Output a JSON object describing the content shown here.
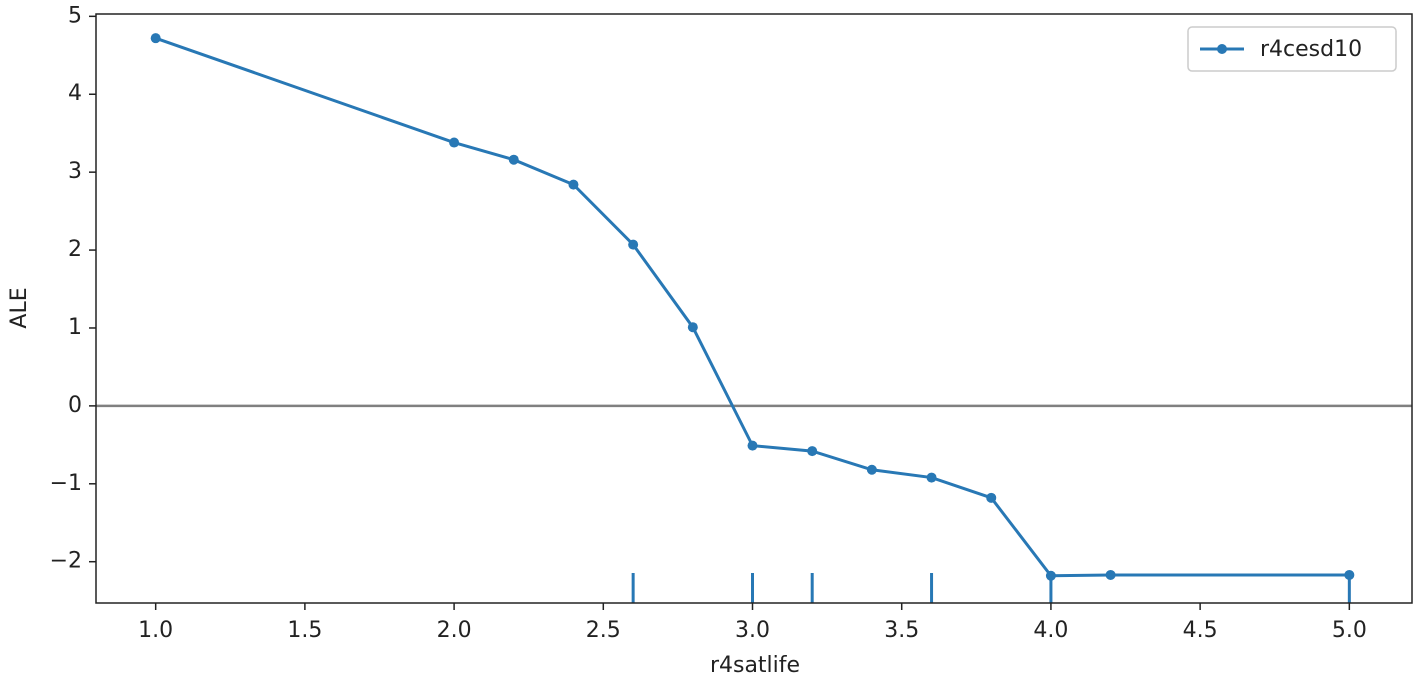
{
  "chart_data": {
    "type": "line",
    "x_label": "r4satlife",
    "y_label": "ALE",
    "x": [
      1.0,
      2.0,
      2.2,
      2.4,
      2.6,
      2.8,
      3.0,
      3.2,
      3.4,
      3.6,
      3.8,
      4.0,
      4.2,
      5.0
    ],
    "series": [
      {
        "name": "r4cesd10",
        "color": "#2878b5",
        "values": [
          4.72,
          3.38,
          3.16,
          2.84,
          2.07,
          1.01,
          -0.51,
          -0.58,
          -0.82,
          -0.92,
          -1.18,
          -2.18,
          -2.17,
          -2.17
        ]
      }
    ],
    "rug": [
      2.6,
      3.0,
      3.2,
      3.6,
      4.0,
      5.0
    ],
    "hline": 0,
    "xlim": [
      0.8,
      5.21
    ],
    "ylim": [
      -2.53,
      5.03
    ],
    "xticks": [
      {
        "value": 1.0,
        "label": "1.0"
      },
      {
        "value": 1.5,
        "label": "1.5"
      },
      {
        "value": 2.0,
        "label": "2.0"
      },
      {
        "value": 2.5,
        "label": "2.5"
      },
      {
        "value": 3.0,
        "label": "3.0"
      },
      {
        "value": 3.5,
        "label": "3.5"
      },
      {
        "value": 4.0,
        "label": "4.0"
      },
      {
        "value": 4.5,
        "label": "4.5"
      },
      {
        "value": 5.0,
        "label": "5.0"
      }
    ],
    "yticks": [
      {
        "value": -2,
        "label": "−2"
      },
      {
        "value": -1,
        "label": "−1"
      },
      0,
      1,
      2,
      3,
      4,
      5
    ],
    "legend": "upper right"
  }
}
